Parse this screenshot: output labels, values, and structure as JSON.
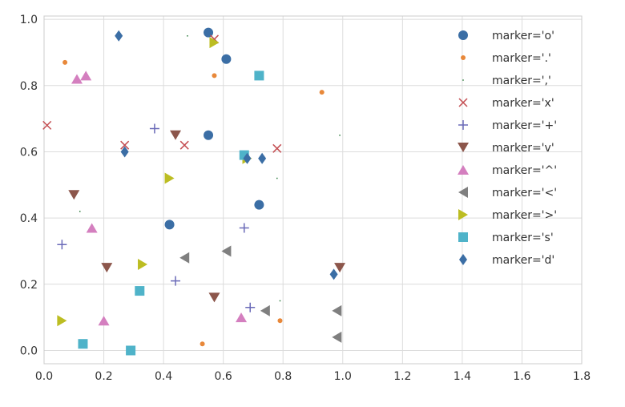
{
  "chart_data": {
    "type": "scatter",
    "title": "",
    "xlabel": "",
    "ylabel": "",
    "xlim": [
      0,
      1.8
    ],
    "ylim": [
      -0.04,
      1.01
    ],
    "xticks": [
      0.0,
      0.2,
      0.4,
      0.6,
      0.8,
      1.0,
      1.2,
      1.4,
      1.6,
      1.8
    ],
    "xtick_labels": [
      "0.0",
      "0.2",
      "0.4",
      "0.6",
      "0.8",
      "1.0",
      "1.2",
      "1.4",
      "1.6",
      "1.8"
    ],
    "yticks": [
      0.0,
      0.2,
      0.4,
      0.6,
      0.8,
      1.0
    ],
    "ytick_labels": [
      "0.0",
      "0.2",
      "0.4",
      "0.6",
      "0.8",
      "1.0"
    ],
    "grid": true,
    "legend_position": "top-right",
    "series": [
      {
        "name": "marker='o'",
        "marker": "o",
        "color": "#3b6ea5",
        "points": [
          [
            0.55,
            0.96
          ],
          [
            0.61,
            0.88
          ],
          [
            0.55,
            0.65
          ],
          [
            0.42,
            0.38
          ],
          [
            0.72,
            0.44
          ]
        ]
      },
      {
        "name": "marker='.'",
        "marker": ".",
        "color": "#e8883a",
        "points": [
          [
            0.07,
            0.87
          ],
          [
            0.57,
            0.83
          ],
          [
            0.93,
            0.78
          ],
          [
            0.53,
            0.02
          ],
          [
            0.79,
            0.09
          ]
        ]
      },
      {
        "name": "marker=','",
        "marker": ",",
        "color": "#2a7a3b",
        "points": [
          [
            0.48,
            0.95
          ],
          [
            0.99,
            0.65
          ],
          [
            0.78,
            0.52
          ],
          [
            0.12,
            0.42
          ],
          [
            0.79,
            0.15
          ]
        ]
      },
      {
        "name": "marker='x'",
        "marker": "x",
        "color": "#c44e52",
        "points": [
          [
            0.01,
            0.68
          ],
          [
            0.57,
            0.94
          ],
          [
            0.27,
            0.62
          ],
          [
            0.47,
            0.62
          ],
          [
            0.78,
            0.61
          ]
        ]
      },
      {
        "name": "marker='+'",
        "marker": "+",
        "color": "#6a6ab8",
        "points": [
          [
            0.37,
            0.67
          ],
          [
            0.06,
            0.32
          ],
          [
            0.44,
            0.21
          ],
          [
            0.67,
            0.37
          ],
          [
            0.69,
            0.13
          ]
        ]
      },
      {
        "name": "marker='v'",
        "marker": "v",
        "color": "#8c564b",
        "points": [
          [
            0.44,
            0.65
          ],
          [
            0.1,
            0.47
          ],
          [
            0.21,
            0.25
          ],
          [
            0.57,
            0.16
          ],
          [
            0.99,
            0.25
          ]
        ]
      },
      {
        "name": "marker='^'",
        "marker": "^",
        "color": "#d47fbf",
        "points": [
          [
            0.11,
            0.82
          ],
          [
            0.14,
            0.83
          ],
          [
            0.16,
            0.37
          ],
          [
            0.2,
            0.09
          ],
          [
            0.66,
            0.1
          ]
        ]
      },
      {
        "name": "marker='<'",
        "marker": "<",
        "color": "#7f7f7f",
        "points": [
          [
            0.47,
            0.28
          ],
          [
            0.61,
            0.3
          ],
          [
            0.74,
            0.12
          ],
          [
            0.98,
            0.12
          ],
          [
            0.98,
            0.04
          ]
        ]
      },
      {
        "name": "marker='>'",
        "marker": ">",
        "color": "#bcbd22",
        "points": [
          [
            0.57,
            0.93
          ],
          [
            0.42,
            0.52
          ],
          [
            0.33,
            0.26
          ],
          [
            0.06,
            0.09
          ],
          [
            0.68,
            0.58
          ]
        ]
      },
      {
        "name": "marker='s'",
        "marker": "s",
        "color": "#4fb3c9",
        "points": [
          [
            0.72,
            0.83
          ],
          [
            0.67,
            0.59
          ],
          [
            0.32,
            0.18
          ],
          [
            0.13,
            0.02
          ],
          [
            0.29,
            0.0
          ]
        ]
      },
      {
        "name": "marker='d'",
        "marker": "d",
        "color": "#3b6ea5",
        "points": [
          [
            0.25,
            0.95
          ],
          [
            0.27,
            0.6
          ],
          [
            0.68,
            0.58
          ],
          [
            0.73,
            0.58
          ],
          [
            0.97,
            0.23
          ]
        ]
      }
    ]
  }
}
